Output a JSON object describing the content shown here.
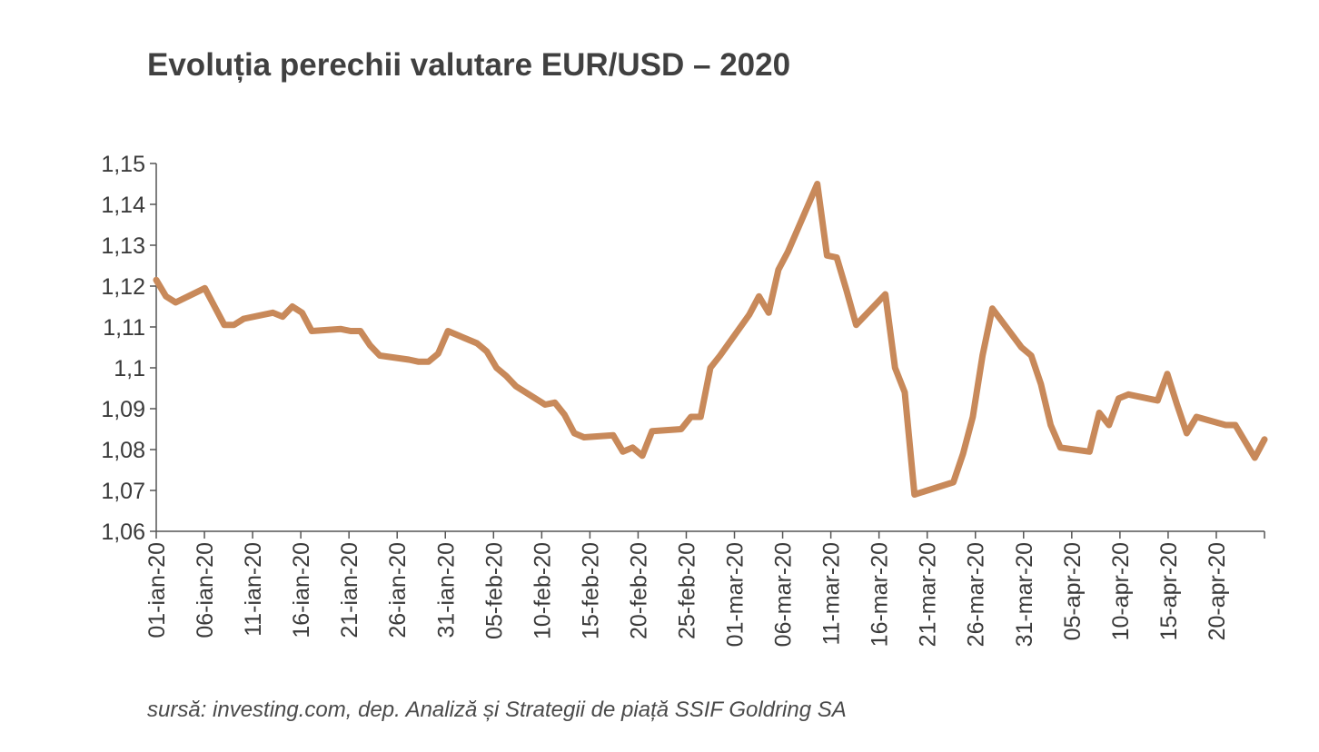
{
  "title": "Evoluția perechii valutare EUR/USD – 2020",
  "source": "sursă: investing.com, dep. Analiză și Strategii de piață SSIF Goldring SA",
  "colors": {
    "line": "#c8895a",
    "axis": "#555555"
  },
  "chart_data": {
    "type": "line",
    "title": "Evoluția perechii valutare EUR/USD – 2020",
    "xlabel": "",
    "ylabel": "",
    "ylim": [
      1.06,
      1.15
    ],
    "grid": false,
    "legend": "none",
    "yticks": [
      "1,06",
      "1,07",
      "1,08",
      "1,09",
      "1,1",
      "1,11",
      "1,12",
      "1,13",
      "1,14",
      "1,15"
    ],
    "xticks": [
      "01-ian-20",
      "06-ian-20",
      "11-ian-20",
      "16-ian-20",
      "21-ian-20",
      "26-ian-20",
      "31-ian-20",
      "05-feb-20",
      "10-feb-20",
      "15-feb-20",
      "20-feb-20",
      "25-feb-20",
      "01-mar-20",
      "06-mar-20",
      "11-mar-20",
      "16-mar-20",
      "21-mar-20",
      "26-mar-20",
      "31-mar-20",
      "05-apr-20",
      "10-apr-20",
      "15-apr-20",
      "20-apr-20"
    ],
    "x_start": "2020-01-01",
    "x_end": "2020-04-24",
    "series": [
      {
        "name": "",
        "points": [
          [
            "2020-01-01",
            1.1215
          ],
          [
            "2020-01-02",
            1.1175
          ],
          [
            "2020-01-03",
            1.116
          ],
          [
            "2020-01-06",
            1.1195
          ],
          [
            "2020-01-07",
            1.115
          ],
          [
            "2020-01-08",
            1.1105
          ],
          [
            "2020-01-09",
            1.1105
          ],
          [
            "2020-01-10",
            1.112
          ],
          [
            "2020-01-13",
            1.1135
          ],
          [
            "2020-01-14",
            1.1125
          ],
          [
            "2020-01-15",
            1.115
          ],
          [
            "2020-01-16",
            1.1135
          ],
          [
            "2020-01-17",
            1.109
          ],
          [
            "2020-01-20",
            1.1095
          ],
          [
            "2020-01-21",
            1.109
          ],
          [
            "2020-01-22",
            1.109
          ],
          [
            "2020-01-23",
            1.1055
          ],
          [
            "2020-01-24",
            1.103
          ],
          [
            "2020-01-27",
            1.102
          ],
          [
            "2020-01-28",
            1.1015
          ],
          [
            "2020-01-29",
            1.1015
          ],
          [
            "2020-01-30",
            1.1035
          ],
          [
            "2020-01-31",
            1.109
          ],
          [
            "2020-02-03",
            1.106
          ],
          [
            "2020-02-04",
            1.104
          ],
          [
            "2020-02-05",
            1.1
          ],
          [
            "2020-02-06",
            1.098
          ],
          [
            "2020-02-07",
            1.0955
          ],
          [
            "2020-02-10",
            1.091
          ],
          [
            "2020-02-11",
            1.0915
          ],
          [
            "2020-02-12",
            1.0885
          ],
          [
            "2020-02-13",
            1.084
          ],
          [
            "2020-02-14",
            1.083
          ],
          [
            "2020-02-17",
            1.0835
          ],
          [
            "2020-02-18",
            1.0795
          ],
          [
            "2020-02-19",
            1.0805
          ],
          [
            "2020-02-20",
            1.0785
          ],
          [
            "2020-02-21",
            1.0845
          ],
          [
            "2020-02-24",
            1.085
          ],
          [
            "2020-02-25",
            1.088
          ],
          [
            "2020-02-26",
            1.088
          ],
          [
            "2020-02-27",
            1.1
          ],
          [
            "2020-02-28",
            1.103
          ],
          [
            "2020-03-02",
            1.113
          ],
          [
            "2020-03-03",
            1.1175
          ],
          [
            "2020-03-04",
            1.1135
          ],
          [
            "2020-03-05",
            1.124
          ],
          [
            "2020-03-06",
            1.1285
          ],
          [
            "2020-03-09",
            1.145
          ],
          [
            "2020-03-10",
            1.1275
          ],
          [
            "2020-03-11",
            1.127
          ],
          [
            "2020-03-12",
            1.119
          ],
          [
            "2020-03-13",
            1.1105
          ],
          [
            "2020-03-16",
            1.118
          ],
          [
            "2020-03-17",
            1.1
          ],
          [
            "2020-03-18",
            1.094
          ],
          [
            "2020-03-19",
            1.069
          ],
          [
            "2020-03-23",
            1.072
          ],
          [
            "2020-03-24",
            1.079
          ],
          [
            "2020-03-25",
            1.088
          ],
          [
            "2020-03-26",
            1.103
          ],
          [
            "2020-03-27",
            1.1145
          ],
          [
            "2020-03-30",
            1.105
          ],
          [
            "2020-03-31",
            1.103
          ],
          [
            "2020-04-01",
            1.096
          ],
          [
            "2020-04-02",
            1.086
          ],
          [
            "2020-04-03",
            1.0805
          ],
          [
            "2020-04-06",
            1.0795
          ],
          [
            "2020-04-07",
            1.089
          ],
          [
            "2020-04-08",
            1.086
          ],
          [
            "2020-04-09",
            1.0925
          ],
          [
            "2020-04-10",
            1.0935
          ],
          [
            "2020-04-13",
            1.092
          ],
          [
            "2020-04-14",
            1.0985
          ],
          [
            "2020-04-15",
            1.091
          ],
          [
            "2020-04-16",
            1.084
          ],
          [
            "2020-04-17",
            1.088
          ],
          [
            "2020-04-20",
            1.086
          ],
          [
            "2020-04-21",
            1.086
          ],
          [
            "2020-04-22",
            1.082
          ],
          [
            "2020-04-23",
            1.078
          ],
          [
            "2020-04-24",
            1.0825
          ]
        ]
      }
    ]
  }
}
